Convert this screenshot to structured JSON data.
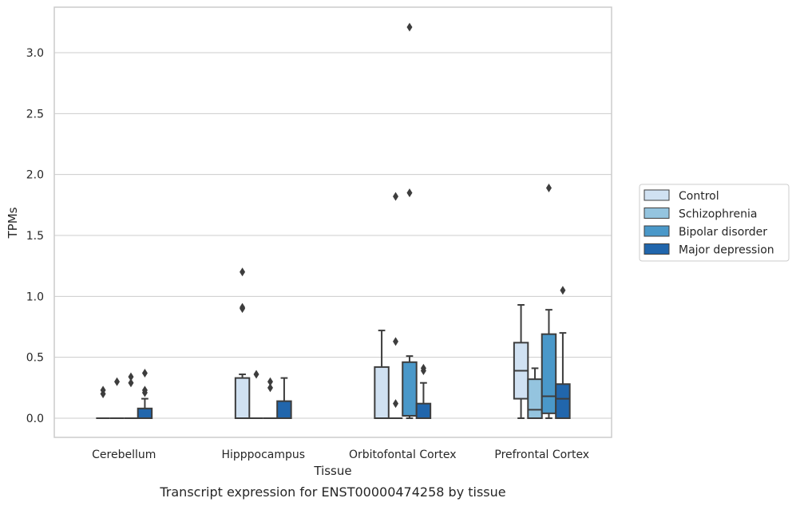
{
  "chart_data": {
    "type": "box",
    "title": "",
    "caption": "Transcript expression for ENST00000474258 by tissue",
    "xlabel": "Tissue",
    "ylabel": "TPMs",
    "ylim": [
      -0.16,
      3.38
    ],
    "yticks": [
      "0.0",
      "0.5",
      "1.0",
      "1.5",
      "2.0",
      "2.5",
      "3.0"
    ],
    "ytick_values": [
      0,
      0.5,
      1.0,
      1.5,
      2.0,
      2.5,
      3.0
    ],
    "grid": true,
    "legend_position": "right",
    "categories": [
      "Cerebellum",
      "Hipppocampus",
      "Orbitofontal Cortex",
      "Prefrontal Cortex"
    ],
    "series": [
      {
        "name": "Control",
        "color": "#d0e1f2",
        "boxes": [
          {
            "q1": 0,
            "median": 0,
            "q3": 0,
            "whislo": 0,
            "whishi": 0,
            "fliers": [
              0.2,
              0.23
            ]
          },
          {
            "q1": 0,
            "median": 0,
            "q3": 0.33,
            "whislo": 0,
            "whishi": 0.36,
            "fliers": [
              0.9,
              0.91,
              1.2
            ]
          },
          {
            "q1": 0,
            "median": 0,
            "q3": 0.42,
            "whislo": 0,
            "whishi": 0.72,
            "fliers": []
          },
          {
            "q1": 0.16,
            "median": 0.39,
            "q3": 0.62,
            "whislo": 0,
            "whishi": 0.93,
            "fliers": []
          }
        ]
      },
      {
        "name": "Schizophrenia",
        "color": "#94c4df",
        "boxes": [
          {
            "q1": 0,
            "median": 0,
            "q3": 0,
            "whislo": 0,
            "whishi": 0,
            "fliers": [
              0.3
            ]
          },
          {
            "q1": 0,
            "median": 0,
            "q3": 0,
            "whislo": 0,
            "whishi": 0,
            "fliers": [
              0.36
            ]
          },
          {
            "q1": 0,
            "median": 0,
            "q3": 0,
            "whislo": 0,
            "whishi": 0,
            "fliers": [
              0.12,
              0.63,
              1.82
            ]
          },
          {
            "q1": 0,
            "median": 0.07,
            "q3": 0.32,
            "whislo": 0,
            "whishi": 0.41,
            "fliers": []
          }
        ]
      },
      {
        "name": "Bipolar disorder",
        "color": "#4a98c9",
        "boxes": [
          {
            "q1": 0,
            "median": 0,
            "q3": 0,
            "whislo": 0,
            "whishi": 0,
            "fliers": [
              0.29,
              0.34
            ]
          },
          {
            "q1": 0,
            "median": 0,
            "q3": 0,
            "whislo": 0,
            "whishi": 0,
            "fliers": [
              0.25,
              0.3
            ]
          },
          {
            "q1": 0.02,
            "median": 0.02,
            "q3": 0.46,
            "whislo": 0,
            "whishi": 0.51,
            "fliers": [
              1.85,
              3.21
            ]
          },
          {
            "q1": 0.04,
            "median": 0.18,
            "q3": 0.69,
            "whislo": 0,
            "whishi": 0.89,
            "fliers": [
              1.89
            ]
          }
        ]
      },
      {
        "name": "Major depression",
        "color": "#2166ac",
        "boxes": [
          {
            "q1": 0,
            "median": 0,
            "q3": 0.08,
            "whislo": 0,
            "whishi": 0.16,
            "fliers": [
              0.21,
              0.23,
              0.37
            ]
          },
          {
            "q1": 0,
            "median": 0,
            "q3": 0.14,
            "whislo": 0,
            "whishi": 0.33,
            "fliers": []
          },
          {
            "q1": 0,
            "median": 0,
            "q3": 0.12,
            "whislo": 0,
            "whishi": 0.29,
            "fliers": [
              0.39,
              0.41
            ]
          },
          {
            "q1": 0,
            "median": 0.16,
            "q3": 0.28,
            "whislo": 0,
            "whishi": 0.7,
            "fliers": [
              1.05
            ]
          }
        ]
      }
    ]
  }
}
